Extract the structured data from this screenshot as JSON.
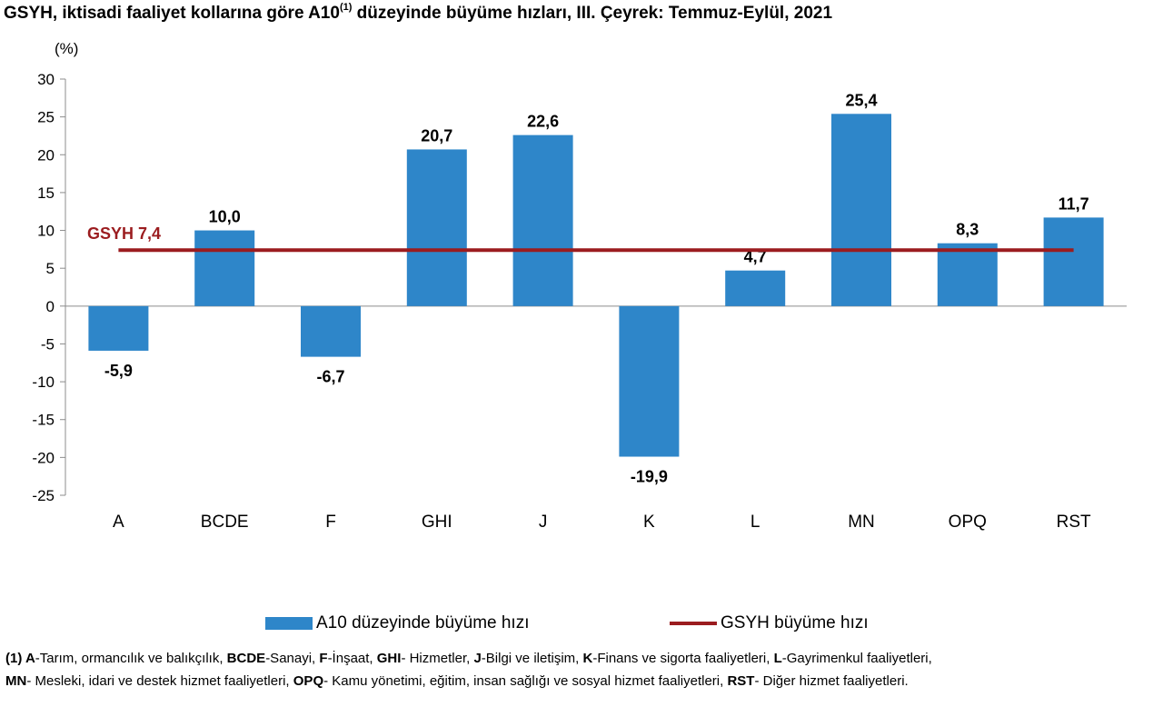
{
  "title": {
    "main": "GSYH, iktisadi faaliyet kollarına göre A10",
    "sup": "(1)",
    "rest": " düzeyinde büyüme hızları, III. Çeyrek: Temmuz-Eylül, 2021"
  },
  "chart_data": {
    "type": "bar",
    "unit_label": "(%)",
    "categories": [
      "A",
      "BCDE",
      "F",
      "GHI",
      "J",
      "K",
      "L",
      "MN",
      "OPQ",
      "RST"
    ],
    "series": [
      {
        "name": "A10 düzeyinde büyüme hızı",
        "values": [
          -5.9,
          10.0,
          -6.7,
          20.7,
          22.6,
          -19.9,
          4.7,
          25.4,
          8.3,
          11.7
        ],
        "value_labels": [
          "-5,9",
          "10,0",
          "-6,7",
          "20,7",
          "22,6",
          "-19,9",
          "4,7",
          "25,4",
          "8,3",
          "11,7"
        ]
      }
    ],
    "reference_line": {
      "name": "GSYH büyüme hızı",
      "value": 7.4,
      "label": "GSYH  7,4"
    },
    "yticks": [
      30,
      25,
      20,
      15,
      10,
      5,
      0,
      -5,
      -10,
      -15,
      -20,
      -25
    ],
    "ylim": [
      -25,
      30
    ],
    "bar_color": "#2e86c9",
    "line_color": "#9b1c1f",
    "legend_position": "bottom"
  },
  "legend": {
    "bar_label": "A10 düzeyinde büyüme hızı",
    "line_label": "GSYH büyüme hızı"
  },
  "footnote": [
    [
      [
        "b",
        "(1) A"
      ],
      [
        "t",
        "-Tarım, ormancılık ve balıkçılık, "
      ],
      [
        "b",
        "BCDE"
      ],
      [
        "t",
        "-Sanayi, "
      ],
      [
        "b",
        "F"
      ],
      [
        "t",
        "-İnşaat, "
      ],
      [
        "b",
        "GHI"
      ],
      [
        "t",
        "- Hizmetler, "
      ],
      [
        "b",
        "J"
      ],
      [
        "t",
        "-Bilgi ve iletişim, "
      ],
      [
        "b",
        "K"
      ],
      [
        "t",
        "-Finans ve sigorta faaliyetleri, "
      ],
      [
        "b",
        "L"
      ],
      [
        "t",
        "-Gayrimenkul faaliyetleri,"
      ]
    ],
    [
      [
        "b",
        "MN"
      ],
      [
        "t",
        "- Mesleki, idari ve destek hizmet faaliyetleri, "
      ],
      [
        "b",
        "OPQ"
      ],
      [
        "t",
        "- Kamu yönetimi, eğitim, insan sağlığı ve sosyal hizmet faaliyetleri, "
      ],
      [
        "b",
        "RST"
      ],
      [
        "t",
        "- Diğer hizmet faaliyetleri."
      ]
    ]
  ]
}
